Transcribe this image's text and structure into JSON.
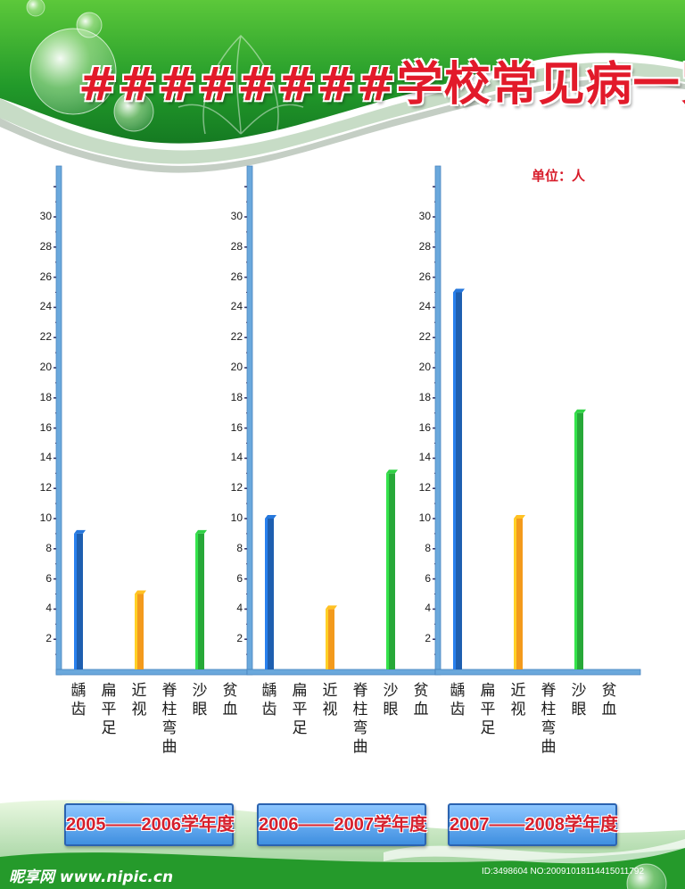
{
  "title": "########学校常见病一览表",
  "unit_label": "单位：人",
  "watermark": {
    "logo": "昵享网 www.nipic.cn",
    "id_text": "ID:3498604 NO:20091018114415011792"
  },
  "colors": {
    "header_green": "#2e9a2c",
    "title_red": "#e21a2a",
    "axis_blue": "#6aa8dc",
    "bar_blue": "#1e5fb0",
    "bar_orange": "#f39a1c",
    "bar_green": "#27a838"
  },
  "chart_data": [
    {
      "type": "bar",
      "title": "",
      "year_label": "2005——2006学年度",
      "categories": [
        "龋齿",
        "扁平足",
        "近视",
        "脊柱弯曲",
        "沙眼",
        "贫血"
      ],
      "values": [
        9,
        0,
        5,
        0,
        9,
        0
      ],
      "bar_colors": [
        "#1e5fb0",
        "#1e5fb0",
        "#f39a1c",
        "#27a838",
        "#27a838",
        "#27a838"
      ],
      "yticks": [
        2,
        4,
        6,
        8,
        10,
        12,
        14,
        16,
        18,
        20,
        22,
        24,
        26,
        28,
        30
      ],
      "ylim": [
        0,
        32
      ],
      "xlabel": "",
      "ylabel": ""
    },
    {
      "type": "bar",
      "title": "",
      "year_label": "2006——2007学年度",
      "categories": [
        "龋齿",
        "扁平足",
        "近视",
        "脊柱弯曲",
        "沙眼",
        "贫血"
      ],
      "values": [
        10,
        0,
        4,
        0,
        13,
        0
      ],
      "bar_colors": [
        "#1e5fb0",
        "#1e5fb0",
        "#f39a1c",
        "#27a838",
        "#27a838",
        "#27a838"
      ],
      "yticks": [
        2,
        4,
        6,
        8,
        10,
        12,
        14,
        16,
        18,
        20,
        22,
        24,
        26,
        28,
        30
      ],
      "ylim": [
        0,
        32
      ],
      "xlabel": "",
      "ylabel": ""
    },
    {
      "type": "bar",
      "title": "",
      "year_label": "2007——2008学年度",
      "categories": [
        "龋齿",
        "扁平足",
        "近视",
        "脊柱弯曲",
        "沙眼",
        "贫血"
      ],
      "values": [
        25,
        0,
        10,
        0,
        17,
        0
      ],
      "bar_colors": [
        "#1e5fb0",
        "#1e5fb0",
        "#f39a1c",
        "#27a838",
        "#27a838",
        "#27a838"
      ],
      "yticks": [
        2,
        4,
        6,
        8,
        10,
        12,
        14,
        16,
        18,
        20,
        22,
        24,
        26,
        28,
        30
      ],
      "ylim": [
        0,
        32
      ],
      "xlabel": "",
      "ylabel": ""
    }
  ]
}
